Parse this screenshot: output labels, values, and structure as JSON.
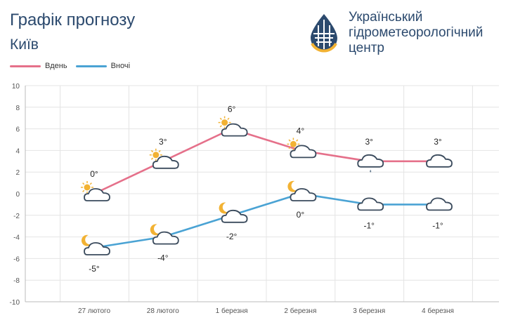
{
  "header": {
    "title": "Графік прогнозу",
    "city": "Київ",
    "org_line1": "Український",
    "org_line2": "гідрометеорологічний",
    "org_line3": "центр"
  },
  "colors": {
    "day": "#e5708a",
    "night": "#4aa3d4",
    "text": "#2c4a6e",
    "sun": "#f2b233"
  },
  "chart_data": {
    "type": "line",
    "categories": [
      "27 лютого",
      "28 лютого",
      "1 березня",
      "2 березня",
      "3 березня",
      "4 березня"
    ],
    "series": [
      {
        "name": "Вдень",
        "values": [
          0,
          3,
          6,
          4,
          3,
          3
        ],
        "labels": [
          "0°",
          "3°",
          "6°",
          "4°",
          "3°",
          "3°"
        ],
        "icons": [
          "sun-cloud-icon",
          "sun-cloud-icon",
          "sun-cloud-icon",
          "sun-cloud-icon",
          "cloud-drizzle-icon",
          "cloud-icon"
        ]
      },
      {
        "name": "Вночі",
        "values": [
          -5,
          -4,
          -2,
          0,
          -1,
          -1
        ],
        "labels": [
          "-5°",
          "-4°",
          "-2°",
          "0°",
          "-1°",
          "-1°"
        ],
        "icons": [
          "moon-cloud-icon",
          "moon-cloud-icon",
          "moon-cloud-icon",
          "moon-cloud-icon",
          "cloud-icon",
          "cloud-icon"
        ]
      }
    ],
    "ylim": [
      -10,
      10
    ],
    "yticks": [
      "10",
      "8",
      "6",
      "4",
      "2",
      "0",
      "-2",
      "-4",
      "-6",
      "-8",
      "-10"
    ],
    "grid": true,
    "legend": "top-left"
  }
}
